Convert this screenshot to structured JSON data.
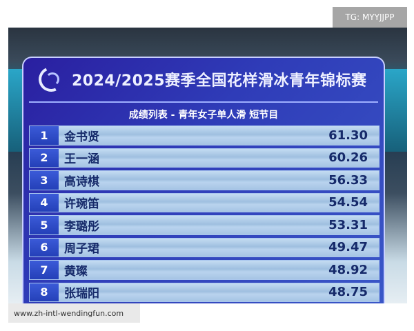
{
  "watermark_top": "TG: MYYJJPP",
  "watermark_bottom": "www.zh-intl-wendingfun.com",
  "board": {
    "title": "2024/2025赛季全国花样滑冰青年锦标赛",
    "subtitle": "成绩列表 - 青年女子单人滑 短节目",
    "accent_color": "#2f3cb8",
    "results": [
      {
        "rank": "1",
        "name": "金书贤",
        "score": "61.30"
      },
      {
        "rank": "2",
        "name": "王一涵",
        "score": "60.26"
      },
      {
        "rank": "3",
        "name": "高诗棋",
        "score": "56.33"
      },
      {
        "rank": "4",
        "name": "许琬笛",
        "score": "54.54"
      },
      {
        "rank": "5",
        "name": "李璐彤",
        "score": "53.31"
      },
      {
        "rank": "6",
        "name": "周子珺",
        "score": "49.47"
      },
      {
        "rank": "7",
        "name": "黄璨",
        "score": "48.92"
      },
      {
        "rank": "8",
        "name": "张瑞阳",
        "score": "48.75"
      }
    ]
  }
}
